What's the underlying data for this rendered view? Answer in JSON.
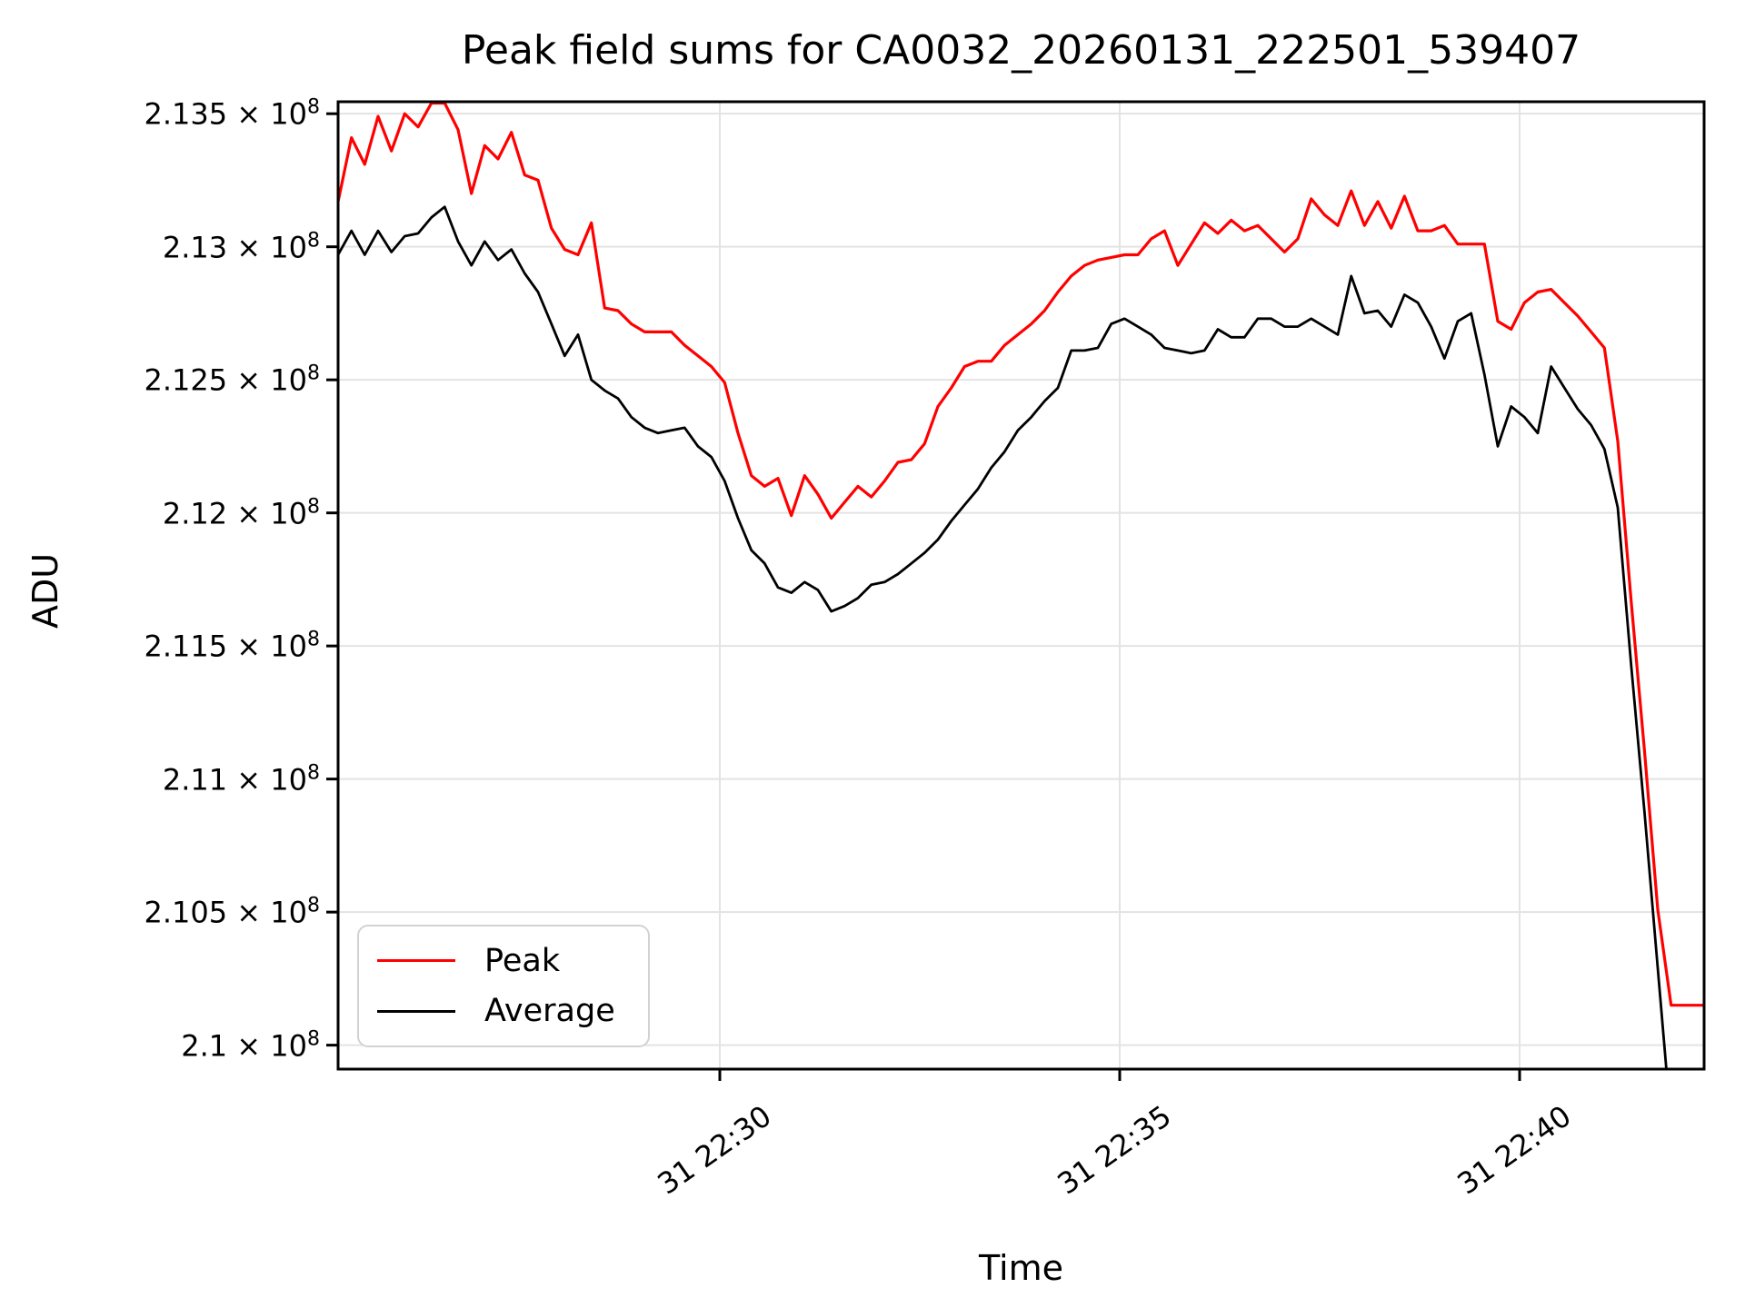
{
  "title": "Peak field sums for CA0032_20260131_222501_539407",
  "axes": {
    "xlabel": "Time",
    "ylabel": "ADU",
    "grid_color": "#e3e3e3",
    "spine_color": "#000000",
    "x_ticks": [
      {
        "minutes": 4.7727,
        "label": "31 22:30"
      },
      {
        "minutes": 9.7727,
        "label": "31 22:35"
      },
      {
        "minutes": 14.7727,
        "label": "31 22:40"
      }
    ],
    "y_ticks": [
      {
        "value": 2.135,
        "mantissa": "2.135 × 10",
        "exp": "8"
      },
      {
        "value": 2.13,
        "mantissa": "2.13 × 10",
        "exp": "8"
      },
      {
        "value": 2.125,
        "mantissa": "2.125 × 10",
        "exp": "8"
      },
      {
        "value": 2.12,
        "mantissa": "2.12 × 10",
        "exp": "8"
      },
      {
        "value": 2.115,
        "mantissa": "2.115 × 10",
        "exp": "8"
      },
      {
        "value": 2.11,
        "mantissa": "2.11 × 10",
        "exp": "8"
      },
      {
        "value": 2.105,
        "mantissa": "2.105 × 10",
        "exp": "8"
      },
      {
        "value": 2.1,
        "mantissa": "2.1 × 10",
        "exp": "8"
      }
    ],
    "xlim_minutes": [
      0,
      17.0795
    ],
    "ylim": [
      2.0991,
      2.13545
    ]
  },
  "legend": {
    "items": [
      {
        "label": "Peak",
        "color": "#ff0000"
      },
      {
        "label": "Average",
        "color": "#000000"
      }
    ]
  },
  "chart_data": {
    "type": "line",
    "title": "Peak field sums for CA0032_20260131_222501_539407",
    "xlabel": "Time",
    "ylabel": "ADU",
    "x_axis": "time on Jan 31, from ~22:25 to ~22:42, ticks at 22:30 / 22:35 / 22:40",
    "values_unit": "×10⁸ ADU",
    "sample_interval_s": 10,
    "start_minutes": 0,
    "grid": true,
    "legend_position": "lower left",
    "series": [
      {
        "name": "Peak",
        "color": "#ff0000",
        "values": [
          2.1317,
          2.1341,
          2.1331,
          2.1349,
          2.1336,
          2.135,
          2.1345,
          2.1354,
          2.1354,
          2.1344,
          2.132,
          2.1338,
          2.1333,
          2.1343,
          2.1327,
          2.1325,
          2.1307,
          2.1299,
          2.1297,
          2.1309,
          2.1277,
          2.1276,
          2.1271,
          2.1268,
          2.1268,
          2.1268,
          2.1263,
          2.1259,
          2.1255,
          2.1249,
          2.123,
          2.1214,
          2.121,
          2.1213,
          2.1199,
          2.1214,
          2.1207,
          2.1198,
          2.1204,
          2.121,
          2.1206,
          2.1212,
          2.1219,
          2.122,
          2.1226,
          2.124,
          2.1247,
          2.1255,
          2.1257,
          2.1257,
          2.1263,
          2.1267,
          2.1271,
          2.1276,
          2.1283,
          2.1289,
          2.1293,
          2.1295,
          2.1296,
          2.1297,
          2.1297,
          2.1303,
          2.1306,
          2.1293,
          2.1301,
          2.1309,
          2.1305,
          2.131,
          2.1306,
          2.1308,
          2.1303,
          2.1298,
          2.1303,
          2.1318,
          2.1312,
          2.1308,
          2.1321,
          2.1308,
          2.1317,
          2.1307,
          2.1319,
          2.1306,
          2.1306,
          2.1308,
          2.1301,
          2.1301,
          2.1301,
          2.1272,
          2.1269,
          2.1279,
          2.1283,
          2.1284,
          2.1279,
          2.1274,
          2.1268,
          2.1262,
          2.1227,
          2.1167,
          2.1111,
          2.1051,
          2.1015,
          2.1015,
          2.1015,
          2.1015
        ]
      },
      {
        "name": "Average",
        "color": "#000000",
        "values": [
          2.1297,
          2.1306,
          2.1297,
          2.1306,
          2.1298,
          2.1304,
          2.1305,
          2.1311,
          2.1315,
          2.1302,
          2.1293,
          2.1302,
          2.1295,
          2.1299,
          2.129,
          2.1283,
          2.1271,
          2.1259,
          2.1267,
          2.125,
          2.1246,
          2.1243,
          2.1236,
          2.1232,
          2.123,
          2.1231,
          2.1232,
          2.1225,
          2.1221,
          2.1212,
          2.1198,
          2.1186,
          2.1181,
          2.1172,
          2.117,
          2.1174,
          2.1171,
          2.1163,
          2.1165,
          2.1168,
          2.1173,
          2.1174,
          2.1177,
          2.1181,
          2.1185,
          2.119,
          2.1197,
          2.1203,
          2.1209,
          2.1217,
          2.1223,
          2.1231,
          2.1236,
          2.1242,
          2.1247,
          2.1261,
          2.1261,
          2.1262,
          2.1271,
          2.1273,
          2.127,
          2.1267,
          2.1262,
          2.1261,
          2.126,
          2.1261,
          2.1269,
          2.1266,
          2.1266,
          2.1273,
          2.1273,
          2.127,
          2.127,
          2.1273,
          2.127,
          2.1267,
          2.1289,
          2.1275,
          2.1276,
          2.127,
          2.1282,
          2.1279,
          2.127,
          2.1258,
          2.1272,
          2.1275,
          2.1252,
          2.1225,
          2.124,
          2.1236,
          2.123,
          2.1255,
          2.1247,
          2.1239,
          2.1233,
          2.1224,
          2.1202,
          2.1143,
          2.1088,
          2.1029,
          2.097
        ]
      }
    ]
  }
}
